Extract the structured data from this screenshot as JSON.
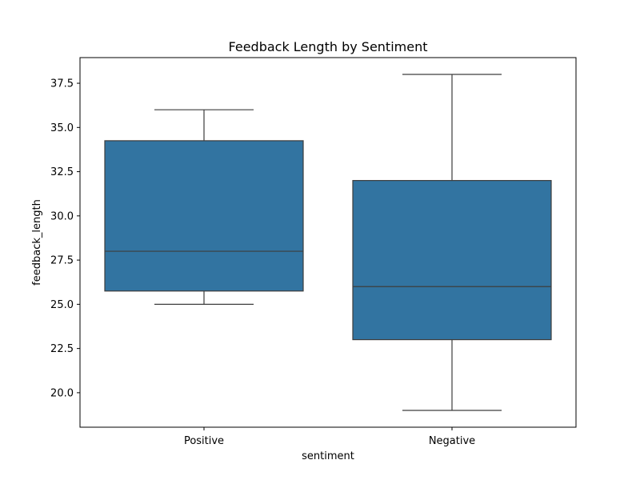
{
  "chart_data": {
    "type": "box",
    "title": "Feedback Length by Sentiment",
    "xlabel": "sentiment",
    "ylabel": "feedback_length",
    "ylim": [
      18.05,
      38.95
    ],
    "yticks": [
      20.0,
      22.5,
      25.0,
      27.5,
      30.0,
      32.5,
      35.0,
      37.5
    ],
    "ytick_labels": [
      "20.0",
      "22.5",
      "25.0",
      "27.5",
      "30.0",
      "32.5",
      "35.0",
      "37.5"
    ],
    "grid": false,
    "categories": [
      "Positive",
      "Negative"
    ],
    "boxes": [
      {
        "category": "Positive",
        "whislo": 25.0,
        "q1": 25.75,
        "med": 28.0,
        "q3": 34.25,
        "whishi": 36.0
      },
      {
        "category": "Negative",
        "whislo": 19.0,
        "q1": 23.0,
        "med": 26.0,
        "q3": 32.0,
        "whishi": 38.0
      }
    ],
    "colors": {
      "box_fill": "#3274a1",
      "line": "#3d3d3d",
      "axes": "#000000"
    }
  }
}
